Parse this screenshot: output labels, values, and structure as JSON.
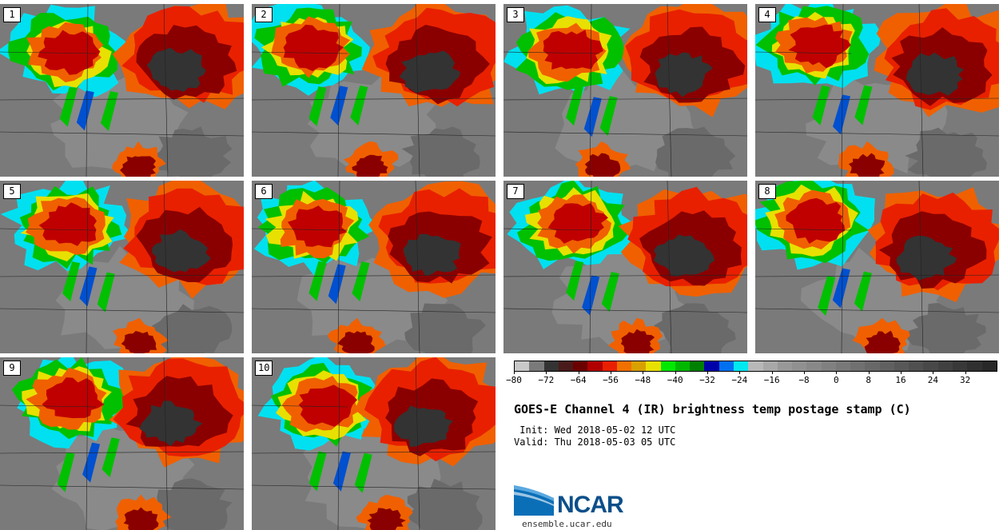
{
  "panels": [
    {
      "label": "1",
      "main_blob": "left",
      "seed": 3
    },
    {
      "label": "2",
      "main_blob": "left",
      "seed": 7
    },
    {
      "label": "3",
      "main_blob": "left",
      "seed": 11
    },
    {
      "label": "4",
      "main_blob": "left",
      "seed": 13
    },
    {
      "label": "5",
      "main_blob": "left",
      "seed": 17
    },
    {
      "label": "6",
      "main_blob": "left",
      "seed": 19
    },
    {
      "label": "7",
      "main_blob": "left",
      "seed": 23
    },
    {
      "label": "8",
      "main_blob": "left",
      "seed": 29
    },
    {
      "label": "9",
      "main_blob": "left",
      "seed": 31
    },
    {
      "label": "10",
      "main_blob": "left",
      "seed": 37
    }
  ],
  "colorbar": {
    "colors": [
      "#c8c8c8",
      "#7a7a7a",
      "#333333",
      "#4a1a1a",
      "#6b0000",
      "#b00000",
      "#e82000",
      "#f07000",
      "#d8a000",
      "#e8e000",
      "#00e800",
      "#00b800",
      "#008000",
      "#0000a8",
      "#0070f0",
      "#00e8f0",
      "#b8b8b8",
      "#a8a8a8",
      "#989898",
      "#909090",
      "#888888",
      "#808080",
      "#787878",
      "#707070",
      "#686868",
      "#606060",
      "#585858",
      "#505050",
      "#484848",
      "#404040",
      "#383838",
      "#303030",
      "#282828"
    ],
    "tick_labels": [
      "−80",
      "−72",
      "−64",
      "−56",
      "−48",
      "−40",
      "−32",
      "−24",
      "−16",
      "−8",
      "0",
      "8",
      "16",
      "24",
      "32"
    ],
    "tick_values": [
      -80,
      -72,
      -64,
      -56,
      -48,
      -40,
      -32,
      -24,
      -16,
      -8,
      0,
      8,
      16,
      24,
      32
    ],
    "min": -80,
    "max": 40
  },
  "title": "GOES-E Channel 4 (IR) brightness temp postage stamp (C)",
  "init_text": " Init: Wed 2018-05-02 12 UTC",
  "valid_text": "Valid: Thu 2018-05-03 05 UTC",
  "logo_text": "NCAR",
  "url_text": "ensemble.ucar.edu",
  "colors": {
    "cold_core": "#333333",
    "red": "#c00000",
    "orange": "#f06000",
    "yellow": "#e8e000",
    "green": "#00c000",
    "blue": "#0050d0",
    "cyan": "#00e0f0",
    "background_gray": "#7a7a7a",
    "ncar_blue": "#0b4f8a"
  }
}
